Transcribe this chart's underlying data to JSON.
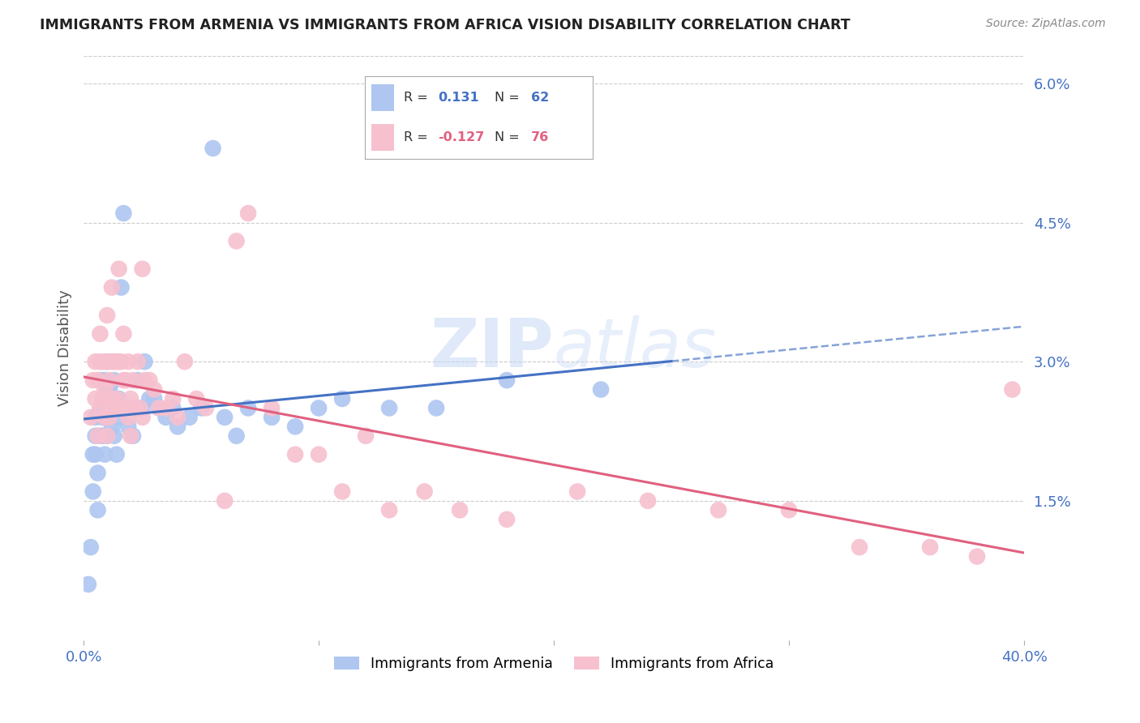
{
  "title": "IMMIGRANTS FROM ARMENIA VS IMMIGRANTS FROM AFRICA VISION DISABILITY CORRELATION CHART",
  "source": "Source: ZipAtlas.com",
  "ylabel": "Vision Disability",
  "xlim": [
    0.0,
    0.4
  ],
  "ylim": [
    0.0,
    0.063
  ],
  "yticks": [
    0.015,
    0.03,
    0.045,
    0.06
  ],
  "ytick_labels": [
    "1.5%",
    "3.0%",
    "4.5%",
    "6.0%"
  ],
  "series": [
    {
      "name": "Immigrants from Armenia",
      "R": 0.131,
      "N": 62,
      "color": "#aec6f0",
      "edge_color": "#5b8dd9",
      "line_color": "#4472c4"
    },
    {
      "name": "Immigrants from Africa",
      "R": -0.127,
      "N": 76,
      "color": "#f7c0cf",
      "edge_color": "#e06080",
      "line_color": "#e06080"
    }
  ],
  "background_color": "#ffffff",
  "grid_color": "#cccccc",
  "axis_color": "#4472c4",
  "armenia_x": [
    0.002,
    0.003,
    0.004,
    0.004,
    0.005,
    0.005,
    0.005,
    0.006,
    0.006,
    0.007,
    0.007,
    0.007,
    0.008,
    0.008,
    0.008,
    0.009,
    0.009,
    0.009,
    0.01,
    0.01,
    0.01,
    0.01,
    0.011,
    0.011,
    0.012,
    0.012,
    0.013,
    0.013,
    0.014,
    0.015,
    0.015,
    0.016,
    0.016,
    0.017,
    0.018,
    0.019,
    0.02,
    0.021,
    0.022,
    0.023,
    0.025,
    0.026,
    0.028,
    0.03,
    0.032,
    0.035,
    0.038,
    0.04,
    0.045,
    0.05,
    0.055,
    0.06,
    0.065,
    0.07,
    0.08,
    0.09,
    0.1,
    0.11,
    0.13,
    0.15,
    0.18,
    0.22
  ],
  "armenia_y": [
    0.006,
    0.01,
    0.02,
    0.016,
    0.022,
    0.024,
    0.02,
    0.014,
    0.018,
    0.022,
    0.025,
    0.028,
    0.022,
    0.026,
    0.024,
    0.02,
    0.024,
    0.028,
    0.022,
    0.025,
    0.027,
    0.03,
    0.024,
    0.027,
    0.023,
    0.025,
    0.022,
    0.028,
    0.02,
    0.026,
    0.024,
    0.025,
    0.038,
    0.046,
    0.025,
    0.023,
    0.025,
    0.022,
    0.025,
    0.028,
    0.025,
    0.03,
    0.026,
    0.026,
    0.025,
    0.024,
    0.025,
    0.023,
    0.024,
    0.025,
    0.053,
    0.024,
    0.022,
    0.025,
    0.024,
    0.023,
    0.025,
    0.026,
    0.025,
    0.025,
    0.028,
    0.027
  ],
  "africa_x": [
    0.003,
    0.004,
    0.005,
    0.005,
    0.006,
    0.006,
    0.007,
    0.007,
    0.007,
    0.008,
    0.008,
    0.009,
    0.009,
    0.01,
    0.01,
    0.01,
    0.011,
    0.011,
    0.012,
    0.012,
    0.012,
    0.013,
    0.013,
    0.014,
    0.014,
    0.015,
    0.015,
    0.015,
    0.016,
    0.016,
    0.017,
    0.017,
    0.018,
    0.018,
    0.019,
    0.019,
    0.02,
    0.021,
    0.022,
    0.023,
    0.024,
    0.025,
    0.026,
    0.028,
    0.03,
    0.032,
    0.035,
    0.038,
    0.04,
    0.043,
    0.048,
    0.052,
    0.06,
    0.065,
    0.07,
    0.08,
    0.09,
    0.1,
    0.11,
    0.12,
    0.13,
    0.145,
    0.16,
    0.18,
    0.21,
    0.24,
    0.27,
    0.3,
    0.33,
    0.36,
    0.38,
    0.395,
    0.01,
    0.015,
    0.02,
    0.025
  ],
  "africa_y": [
    0.024,
    0.028,
    0.026,
    0.03,
    0.022,
    0.028,
    0.025,
    0.03,
    0.033,
    0.026,
    0.03,
    0.024,
    0.027,
    0.022,
    0.026,
    0.03,
    0.024,
    0.028,
    0.026,
    0.03,
    0.038,
    0.025,
    0.03,
    0.026,
    0.03,
    0.025,
    0.03,
    0.04,
    0.025,
    0.03,
    0.028,
    0.033,
    0.025,
    0.028,
    0.024,
    0.03,
    0.026,
    0.028,
    0.025,
    0.03,
    0.025,
    0.04,
    0.028,
    0.028,
    0.027,
    0.025,
    0.025,
    0.026,
    0.024,
    0.03,
    0.026,
    0.025,
    0.015,
    0.043,
    0.046,
    0.025,
    0.02,
    0.02,
    0.016,
    0.022,
    0.014,
    0.016,
    0.014,
    0.013,
    0.016,
    0.015,
    0.014,
    0.014,
    0.01,
    0.01,
    0.009,
    0.027,
    0.035,
    0.025,
    0.022,
    0.024
  ]
}
